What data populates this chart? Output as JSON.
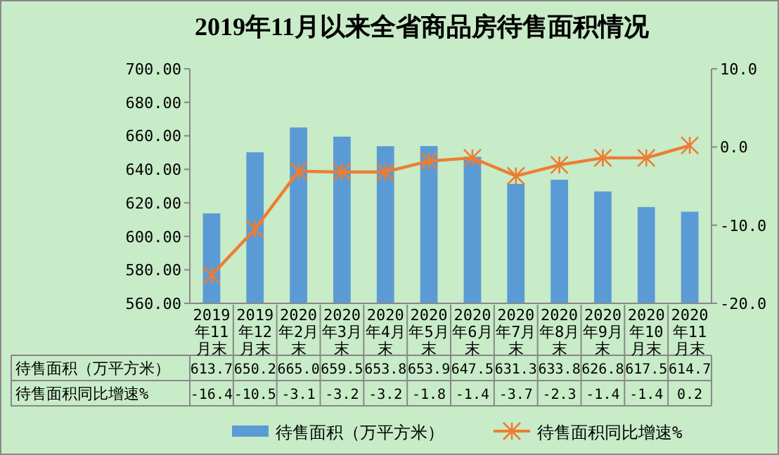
{
  "chart_data": {
    "type": "bar",
    "title": "2019年11月以来全省商品房待售面积情况",
    "categories": [
      "2019年11月末",
      "2019年12月末",
      "2020年2月末",
      "2020年3月末",
      "2020年4月末",
      "2020年5月末",
      "2020年6月末",
      "2020年7月末",
      "2020年8月末",
      "2020年9月末",
      "2020年10月末",
      "2020年11月末"
    ],
    "series": [
      {
        "name": "待售面积（万平方米）",
        "color": "#5b9bd5",
        "values": [
          613.7,
          650.2,
          665.0,
          659.5,
          653.8,
          653.9,
          647.5,
          631.3,
          633.8,
          626.8,
          617.5,
          614.7
        ],
        "value_labels": [
          "613.7",
          "650.2",
          "665.0",
          "659.5",
          "653.8",
          "653.9",
          "647.5",
          "631.3",
          "633.8",
          "626.8",
          "617.5",
          "614.7"
        ]
      },
      {
        "name": "待售面积同比增速%",
        "type": "line",
        "axis": "y2",
        "color": "#ed7d31",
        "marker": "cross",
        "values": [
          -16.4,
          -10.5,
          -3.1,
          -3.2,
          -3.2,
          -1.8,
          -1.4,
          -3.7,
          -2.3,
          -1.4,
          -1.4,
          0.2
        ]
      }
    ],
    "ylim": [
      560,
      700
    ],
    "yticks": [
      {
        "value": 560,
        "label": "560.00"
      },
      {
        "value": 580,
        "label": "580.00"
      },
      {
        "value": 600,
        "label": "600.00"
      },
      {
        "value": 620,
        "label": "620.00"
      },
      {
        "value": 640,
        "label": "640.00"
      },
      {
        "value": 660,
        "label": "660.00"
      },
      {
        "value": 680,
        "label": "680.00"
      },
      {
        "value": 700,
        "label": "700.00"
      }
    ],
    "y2lim": [
      -20,
      10
    ],
    "y2ticks": [
      {
        "value": -20,
        "label": "-20.0"
      },
      {
        "value": -10,
        "label": "-10.0"
      },
      {
        "value": 0,
        "label": "0.0"
      },
      {
        "value": 10,
        "label": "10.0"
      }
    ],
    "data_labels": true,
    "legend": "bottom",
    "grid": false
  }
}
